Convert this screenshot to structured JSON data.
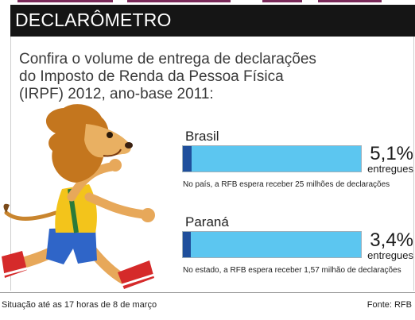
{
  "header": {
    "title": "DECLARÔMETRO"
  },
  "intro": {
    "line1": "Confira o volume de entrega de declarações",
    "line2": "do Imposto de Renda da Pessoa Física",
    "line3": "(IRPF) 2012, ano-base 2011:"
  },
  "colors": {
    "bar_track": "#5cc6f0",
    "bar_fill": "#1f4f9c",
    "header_bg": "#151515"
  },
  "chart_data": {
    "type": "bar",
    "categories": [
      "Brasil",
      "Paraná"
    ],
    "values": [
      5.1,
      3.4
    ],
    "unit": "%",
    "xlim": [
      0,
      100
    ],
    "items": [
      {
        "name": "Brasil",
        "value": 5.1,
        "value_label": "5,1%",
        "sub_label": "entregues",
        "note": "No país, a RFB espera receber 25 milhões de declarações"
      },
      {
        "name": "Paraná",
        "value": 3.4,
        "value_label": "3,4%",
        "sub_label": "entregues",
        "note": "No estado, a RFB espera receber 1,57 milhão de declarações"
      }
    ]
  },
  "footer": {
    "status": "Situação até as 17 horas de 8 de março",
    "source": "Fonte: RFB"
  }
}
